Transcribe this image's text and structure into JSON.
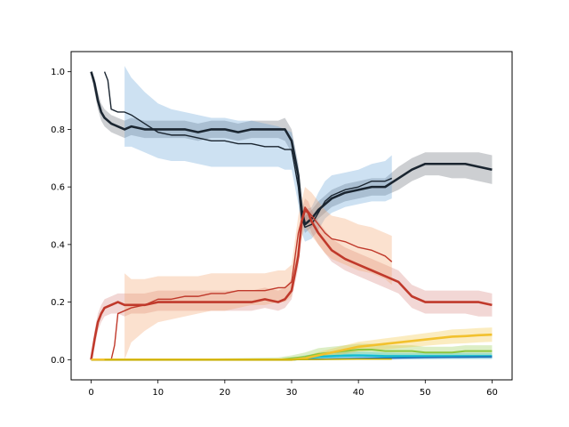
{
  "chart_data": {
    "type": "line",
    "title": "",
    "xlabel": "",
    "ylabel": "",
    "xlim": [
      -3,
      63
    ],
    "ylim": [
      -0.07,
      1.07
    ],
    "grid": false,
    "legend": "none",
    "x_ticks": [
      0,
      10,
      20,
      30,
      40,
      50,
      60
    ],
    "x_tick_labels": [
      "0",
      "10",
      "20",
      "30",
      "40",
      "50",
      "60"
    ],
    "y_ticks": [
      0.0,
      0.2,
      0.4,
      0.6,
      0.8,
      1.0
    ],
    "y_tick_labels": [
      "0.0",
      "0.2",
      "0.4",
      "0.6",
      "0.8",
      "1.0"
    ],
    "series": [
      {
        "color": "#1a2530",
        "band_color": "#1a2530",
        "band_opacity": 0.22,
        "line_width": 2.6,
        "x": [
          0,
          0.5,
          1,
          1.5,
          2,
          3,
          4,
          5,
          6,
          8,
          10,
          12,
          14,
          16,
          18,
          20,
          22,
          24,
          26,
          28,
          29,
          30,
          31,
          31.5,
          32,
          32.5,
          33,
          34,
          35,
          36,
          38,
          40,
          42,
          44,
          46,
          48,
          50,
          52,
          54,
          56,
          58,
          60
        ],
        "y": [
          1.0,
          0.96,
          0.9,
          0.86,
          0.84,
          0.82,
          0.81,
          0.8,
          0.81,
          0.8,
          0.8,
          0.8,
          0.8,
          0.79,
          0.8,
          0.8,
          0.79,
          0.8,
          0.8,
          0.8,
          0.8,
          0.76,
          0.64,
          0.52,
          0.47,
          0.48,
          0.49,
          0.52,
          0.54,
          0.56,
          0.58,
          0.59,
          0.6,
          0.6,
          0.63,
          0.66,
          0.68,
          0.68,
          0.68,
          0.68,
          0.67,
          0.66
        ],
        "lower": [
          0.99,
          0.93,
          0.87,
          0.83,
          0.81,
          0.79,
          0.78,
          0.77,
          0.78,
          0.77,
          0.77,
          0.77,
          0.77,
          0.76,
          0.77,
          0.77,
          0.76,
          0.77,
          0.77,
          0.77,
          0.76,
          0.72,
          0.6,
          0.48,
          0.44,
          0.45,
          0.46,
          0.49,
          0.51,
          0.53,
          0.55,
          0.56,
          0.57,
          0.57,
          0.59,
          0.62,
          0.64,
          0.64,
          0.63,
          0.63,
          0.62,
          0.61
        ],
        "upper": [
          1.0,
          0.98,
          0.93,
          0.89,
          0.87,
          0.85,
          0.84,
          0.83,
          0.84,
          0.83,
          0.83,
          0.83,
          0.83,
          0.82,
          0.83,
          0.83,
          0.82,
          0.83,
          0.83,
          0.83,
          0.84,
          0.8,
          0.68,
          0.56,
          0.5,
          0.51,
          0.52,
          0.55,
          0.57,
          0.59,
          0.61,
          0.62,
          0.63,
          0.63,
          0.67,
          0.7,
          0.72,
          0.72,
          0.72,
          0.72,
          0.72,
          0.71
        ]
      },
      {
        "color": "#1a2530",
        "band_color": "#5b9bd5",
        "band_opacity": 0.3,
        "line_width": 1.4,
        "x": [
          2,
          2.5,
          3,
          4,
          5,
          6,
          8,
          10,
          12,
          14,
          16,
          18,
          20,
          22,
          24,
          26,
          28,
          29,
          30,
          31,
          31.5,
          32,
          33,
          34,
          35,
          36,
          38,
          40,
          42,
          44,
          45
        ],
        "y": [
          1.0,
          0.97,
          0.87,
          0.86,
          0.86,
          0.85,
          0.82,
          0.79,
          0.78,
          0.78,
          0.77,
          0.76,
          0.76,
          0.75,
          0.75,
          0.74,
          0.74,
          0.73,
          0.73,
          0.6,
          0.49,
          0.46,
          0.47,
          0.51,
          0.55,
          0.57,
          0.59,
          0.6,
          0.62,
          0.62,
          0.63
        ],
        "lower": [
          null,
          null,
          null,
          null,
          0.74,
          0.74,
          0.72,
          0.7,
          0.69,
          0.69,
          0.68,
          0.67,
          0.67,
          0.67,
          0.67,
          0.67,
          0.67,
          0.66,
          0.66,
          0.54,
          0.44,
          0.41,
          0.42,
          0.45,
          0.49,
          0.51,
          0.53,
          0.54,
          0.55,
          0.55,
          0.56
        ],
        "upper": [
          null,
          null,
          null,
          null,
          1.02,
          0.98,
          0.93,
          0.89,
          0.87,
          0.86,
          0.85,
          0.84,
          0.84,
          0.83,
          0.83,
          0.82,
          0.81,
          0.8,
          0.79,
          0.67,
          0.56,
          0.52,
          0.53,
          0.58,
          0.62,
          0.64,
          0.65,
          0.66,
          0.68,
          0.69,
          0.71
        ]
      },
      {
        "color": "#c0392b",
        "band_color": "#c0392b",
        "band_opacity": 0.2,
        "line_width": 2.6,
        "x": [
          0,
          0.5,
          1,
          1.5,
          2,
          3,
          4,
          5,
          6,
          8,
          10,
          12,
          14,
          16,
          18,
          20,
          22,
          24,
          26,
          28,
          29,
          30,
          31,
          31.5,
          32,
          32.5,
          33,
          34,
          35,
          36,
          38,
          40,
          42,
          44,
          46,
          48,
          50,
          52,
          54,
          56,
          58,
          60
        ],
        "y": [
          0.0,
          0.07,
          0.13,
          0.16,
          0.18,
          0.19,
          0.2,
          0.19,
          0.19,
          0.19,
          0.2,
          0.2,
          0.2,
          0.2,
          0.2,
          0.2,
          0.2,
          0.2,
          0.21,
          0.2,
          0.21,
          0.24,
          0.36,
          0.48,
          0.52,
          0.51,
          0.48,
          0.44,
          0.41,
          0.38,
          0.35,
          0.33,
          0.31,
          0.29,
          0.27,
          0.22,
          0.2,
          0.2,
          0.2,
          0.2,
          0.2,
          0.19
        ],
        "lower": [
          0.0,
          0.04,
          0.1,
          0.13,
          0.15,
          0.16,
          0.16,
          0.15,
          0.16,
          0.16,
          0.17,
          0.17,
          0.17,
          0.17,
          0.17,
          0.17,
          0.17,
          0.17,
          0.18,
          0.17,
          0.18,
          0.21,
          0.32,
          0.44,
          0.48,
          0.47,
          0.44,
          0.4,
          0.37,
          0.34,
          0.31,
          0.29,
          0.27,
          0.25,
          0.23,
          0.18,
          0.16,
          0.16,
          0.16,
          0.16,
          0.15,
          0.15
        ],
        "upper": [
          0.0,
          0.1,
          0.16,
          0.19,
          0.21,
          0.22,
          0.23,
          0.23,
          0.23,
          0.23,
          0.24,
          0.24,
          0.24,
          0.24,
          0.24,
          0.24,
          0.24,
          0.24,
          0.25,
          0.24,
          0.25,
          0.28,
          0.4,
          0.52,
          0.56,
          0.55,
          0.52,
          0.48,
          0.45,
          0.42,
          0.39,
          0.37,
          0.35,
          0.33,
          0.31,
          0.26,
          0.24,
          0.24,
          0.24,
          0.24,
          0.24,
          0.23
        ]
      },
      {
        "color": "#c0392b",
        "band_color": "#f4a26b",
        "band_opacity": 0.32,
        "line_width": 1.4,
        "x": [
          2,
          3,
          3.5,
          4,
          5,
          6,
          8,
          10,
          12,
          14,
          16,
          18,
          20,
          22,
          24,
          26,
          28,
          29,
          30,
          31,
          32,
          33,
          34,
          35,
          36,
          38,
          40,
          42,
          44,
          45
        ],
        "y": [
          0.0,
          0.0,
          0.05,
          0.16,
          0.17,
          0.18,
          0.19,
          0.21,
          0.21,
          0.22,
          0.22,
          0.23,
          0.23,
          0.24,
          0.24,
          0.24,
          0.25,
          0.25,
          0.27,
          0.44,
          0.53,
          0.5,
          0.47,
          0.44,
          0.42,
          0.41,
          0.39,
          0.38,
          0.36,
          0.34
        ],
        "lower": [
          null,
          null,
          null,
          null,
          0.0,
          0.06,
          0.1,
          0.13,
          0.14,
          0.15,
          0.16,
          0.17,
          0.17,
          0.18,
          0.19,
          0.19,
          0.2,
          0.2,
          0.22,
          0.38,
          0.46,
          0.43,
          0.4,
          0.37,
          0.35,
          0.33,
          0.31,
          0.3,
          0.28,
          0.26
        ],
        "upper": [
          null,
          null,
          null,
          null,
          0.3,
          0.28,
          0.28,
          0.29,
          0.29,
          0.29,
          0.29,
          0.3,
          0.3,
          0.3,
          0.3,
          0.3,
          0.31,
          0.31,
          0.33,
          0.5,
          0.6,
          0.58,
          0.55,
          0.52,
          0.5,
          0.49,
          0.47,
          0.46,
          0.44,
          0.43
        ]
      },
      {
        "color": "#8cc63f",
        "band_color": "#8cc63f",
        "band_opacity": 0.3,
        "line_width": 2.0,
        "x": [
          0,
          10,
          20,
          28,
          30,
          32,
          34,
          36,
          38,
          40,
          42,
          44,
          46,
          48,
          50,
          52,
          54,
          56,
          58,
          60
        ],
        "y": [
          0.0,
          0.0,
          0.0,
          0.0,
          0.005,
          0.01,
          0.02,
          0.025,
          0.03,
          0.035,
          0.035,
          0.03,
          0.03,
          0.03,
          0.025,
          0.025,
          0.025,
          0.03,
          0.03,
          0.03
        ],
        "lower": [
          0.0,
          0.0,
          0.0,
          0.0,
          0.0,
          0.0,
          0.005,
          0.01,
          0.015,
          0.02,
          0.02,
          0.015,
          0.015,
          0.015,
          0.01,
          0.01,
          0.01,
          0.015,
          0.015,
          0.015
        ],
        "upper": [
          0.0,
          0.0,
          0.005,
          0.008,
          0.015,
          0.025,
          0.04,
          0.045,
          0.05,
          0.055,
          0.055,
          0.05,
          0.05,
          0.05,
          0.045,
          0.045,
          0.045,
          0.05,
          0.05,
          0.05
        ]
      },
      {
        "color": "#17becf",
        "band_color": "#17becf",
        "band_opacity": 0.3,
        "line_width": 2.6,
        "x": [
          0,
          10,
          20,
          28,
          30,
          32,
          34,
          36,
          38,
          40,
          42,
          44,
          46,
          48,
          50,
          52,
          54,
          56,
          58,
          60
        ],
        "y": [
          0.0,
          0.0,
          0.0,
          0.0,
          0.0,
          0.005,
          0.01,
          0.012,
          0.014,
          0.015,
          0.014,
          0.012,
          0.012,
          0.012,
          0.012,
          0.012,
          0.012,
          0.012,
          0.012,
          0.012
        ],
        "lower": [
          0.0,
          0.0,
          0.0,
          0.0,
          0.0,
          0.0,
          0.0,
          0.002,
          0.004,
          0.005,
          0.004,
          0.003,
          0.003,
          0.003,
          0.003,
          0.003,
          0.003,
          0.003,
          0.003,
          0.003
        ],
        "upper": [
          0.0,
          0.0,
          0.0,
          0.003,
          0.005,
          0.015,
          0.022,
          0.025,
          0.027,
          0.028,
          0.027,
          0.025,
          0.024,
          0.024,
          0.024,
          0.024,
          0.024,
          0.024,
          0.024,
          0.024
        ]
      },
      {
        "color": "#1f6fb5",
        "band_color": "#1f6fb5",
        "band_opacity": 0.25,
        "line_width": 1.6,
        "x": [
          0,
          10,
          20,
          30,
          40,
          45,
          50,
          55,
          60
        ],
        "y": [
          0.0,
          0.0,
          0.0,
          0.0,
          0.004,
          0.006,
          0.008,
          0.009,
          0.01
        ],
        "lower": [
          0.0,
          0.0,
          0.0,
          0.0,
          0.0,
          0.0,
          0.002,
          0.003,
          0.003
        ],
        "upper": [
          0.0,
          0.0,
          0.0,
          0.002,
          0.01,
          0.012,
          0.014,
          0.015,
          0.016
        ]
      },
      {
        "color": "#f2c12e",
        "band_color": "#f2c12e",
        "band_opacity": 0.3,
        "line_width": 2.6,
        "x": [
          0,
          10,
          20,
          28,
          30,
          32,
          34,
          36,
          38,
          40,
          42,
          44,
          46,
          48,
          50,
          52,
          54,
          56,
          58,
          60
        ],
        "y": [
          0.0,
          0.0,
          0.0,
          0.0,
          0.0,
          0.005,
          0.015,
          0.025,
          0.035,
          0.045,
          0.05,
          0.055,
          0.06,
          0.065,
          0.07,
          0.075,
          0.08,
          0.082,
          0.085,
          0.087
        ],
        "lower": [
          0.0,
          0.0,
          0.0,
          0.0,
          0.0,
          0.0,
          0.005,
          0.013,
          0.02,
          0.028,
          0.032,
          0.036,
          0.04,
          0.044,
          0.048,
          0.052,
          0.055,
          0.057,
          0.06,
          0.062
        ],
        "upper": [
          0.0,
          0.0,
          0.0,
          0.003,
          0.006,
          0.012,
          0.026,
          0.038,
          0.05,
          0.062,
          0.068,
          0.074,
          0.08,
          0.086,
          0.092,
          0.098,
          0.105,
          0.107,
          0.11,
          0.112
        ]
      },
      {
        "color": "#c8b200",
        "band_color": "#c8b200",
        "band_opacity": 0.0,
        "line_width": 1.4,
        "x": [
          2,
          10,
          20,
          30,
          35,
          40,
          45
        ],
        "y": [
          0.0,
          0.0,
          0.0,
          0.0,
          0.001,
          0.002,
          0.002
        ],
        "lower": [
          null,
          null,
          null,
          null,
          null,
          null,
          null
        ],
        "upper": [
          null,
          null,
          null,
          null,
          null,
          null,
          null
        ]
      }
    ]
  }
}
